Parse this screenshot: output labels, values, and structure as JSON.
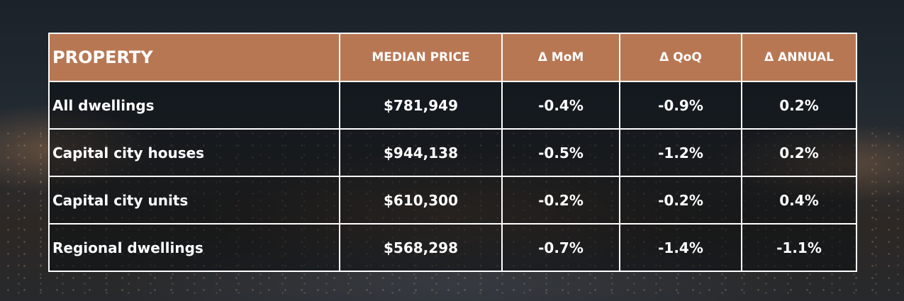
{
  "table": {
    "headers": [
      "PROPERTY",
      "MEDIAN PRICE",
      "Δ MoM",
      "Δ QoQ",
      "Δ ANNUAL"
    ],
    "rows": [
      [
        "All dwellings",
        "$781,949",
        "-0.4%",
        "-0.9%",
        "0.2%"
      ],
      [
        "Capital city houses",
        "$944,138",
        "-0.5%",
        "-1.2%",
        "0.2%"
      ],
      [
        "Capital city units",
        "$610,300",
        "-0.2%",
        "-0.2%",
        "0.4%"
      ],
      [
        "Regional dwellings",
        "$568,298",
        "-0.7%",
        "-1.4%",
        "-1.1%"
      ]
    ]
  },
  "colors": {
    "header_bg": "#b87753",
    "border": "#ffffff",
    "text": "#ffffff"
  }
}
